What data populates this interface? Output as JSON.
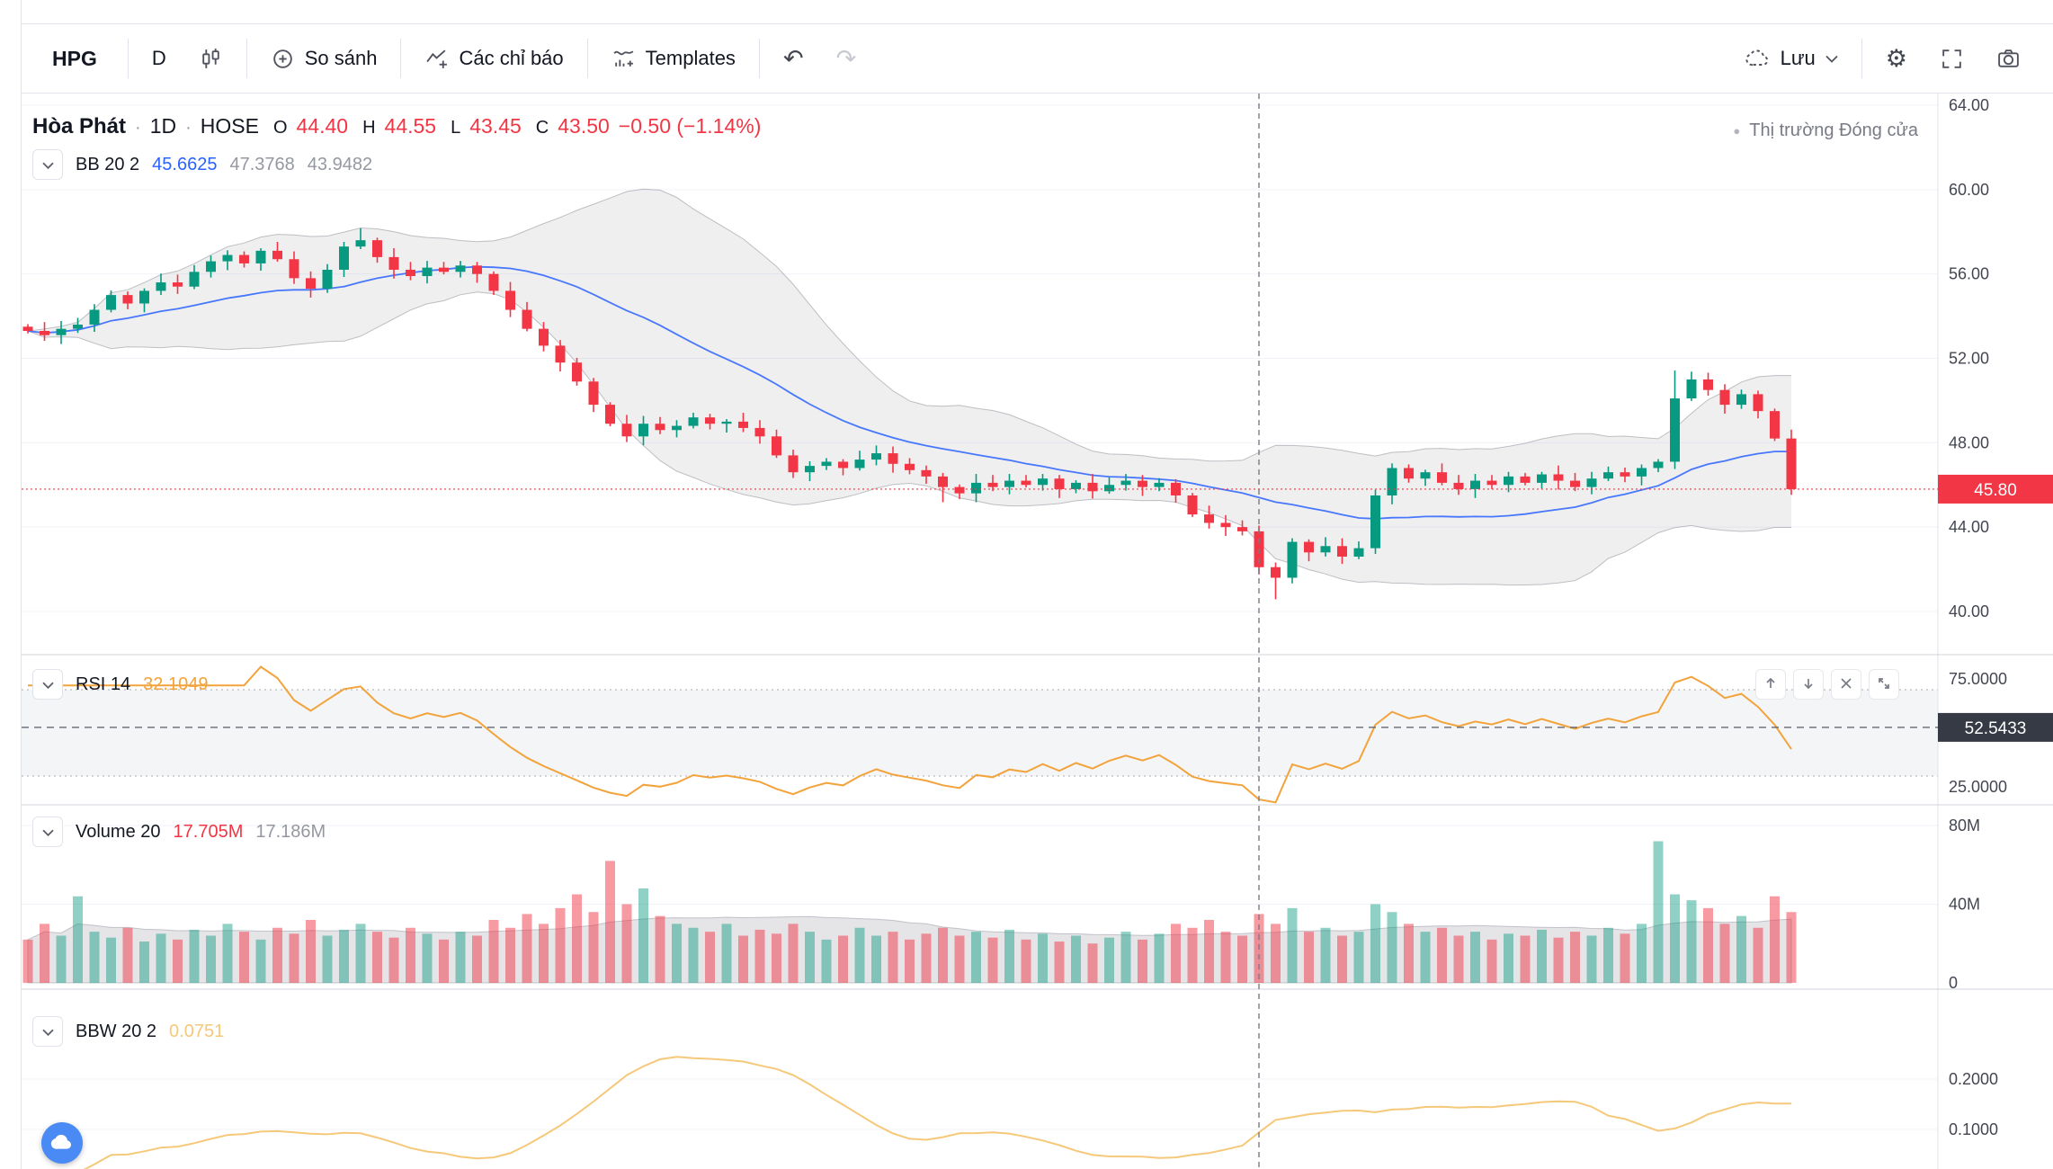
{
  "toolbar": {
    "symbol": "HPG",
    "interval": "D",
    "compare_label": "So sánh",
    "indicators_label": "Các chỉ báo",
    "templates_label": "Templates",
    "save_label": "Lưu"
  },
  "icons": {
    "undo": "↶",
    "redo": "↷",
    "gear": "⚙",
    "dot": "·",
    "bullet": "●"
  },
  "legend": {
    "title": "Hòa Phát",
    "interval": "1D",
    "exchange": "HOSE",
    "o_label": "O",
    "o": "44.40",
    "h_label": "H",
    "h": "44.55",
    "l_label": "L",
    "l": "43.45",
    "c_label": "C",
    "c": "43.50",
    "change": "−0.50 (−1.14%)",
    "market_status": "Thị trường Đóng cửa"
  },
  "indicators": {
    "bb": {
      "name": "BB 20 2",
      "v1": "45.6625",
      "v2": "47.3768",
      "v3": "43.9482"
    },
    "rsi": {
      "name": "RSI 14",
      "value": "32.1049"
    },
    "vol": {
      "name": "Volume 20",
      "v1": "17.705M",
      "v2": "17.186M"
    },
    "bbw": {
      "name": "BBW 20 2",
      "value": "0.0751"
    }
  },
  "colors": {
    "up": "#089981",
    "down": "#F23645",
    "bb_line": "#2962FF",
    "bb_fill": "rgba(120,123,134,0.12)",
    "bb_edge": "rgba(120,123,134,0.45)",
    "rsi": "#F2A33C",
    "bbw": "#F5C87A",
    "badge_dark": "#363A45",
    "grid": "#F0F3FA",
    "separator": "#E0E3EB",
    "pane_separator": "#D1D4DC",
    "crosshair": "#787B86"
  },
  "chart_data": {
    "type": "candlestick",
    "first_open": 53.5,
    "closes": [
      53.3,
      53.1,
      53.4,
      53.6,
      54.3,
      55.0,
      54.6,
      55.2,
      55.6,
      55.4,
      56.1,
      56.6,
      56.9,
      56.5,
      57.1,
      56.7,
      55.8,
      55.3,
      56.2,
      57.3,
      57.6,
      56.8,
      56.2,
      55.9,
      56.3,
      56.1,
      56.4,
      56.0,
      55.2,
      54.3,
      53.4,
      52.6,
      51.8,
      50.9,
      49.8,
      48.9,
      48.3,
      48.9,
      48.6,
      48.8,
      49.2,
      48.9,
      49.0,
      48.7,
      48.3,
      47.4,
      46.6,
      46.9,
      47.1,
      46.8,
      47.2,
      47.5,
      47.0,
      46.7,
      46.4,
      45.9,
      45.6,
      46.1,
      45.9,
      46.2,
      46.0,
      46.3,
      45.8,
      46.1,
      45.7,
      46.0,
      46.2,
      45.9,
      46.1,
      45.5,
      44.6,
      44.2,
      44.0,
      43.8,
      42.1,
      41.6,
      43.3,
      42.8,
      43.1,
      42.6,
      43.0,
      45.5,
      46.8,
      46.3,
      46.6,
      46.1,
      45.8,
      46.2,
      46.0,
      46.4,
      46.1,
      46.5,
      46.2,
      45.9,
      46.3,
      46.6,
      46.4,
      46.8,
      47.1,
      50.1,
      51.0,
      50.5,
      49.8,
      50.3,
      49.5,
      48.2,
      45.8
    ],
    "volumes": [
      22,
      30,
      24,
      44,
      26,
      23,
      28,
      21,
      25,
      22,
      27,
      24,
      30,
      26,
      22,
      28,
      25,
      32,
      24,
      27,
      30,
      26,
      23,
      28,
      25,
      22,
      26,
      24,
      32,
      28,
      35,
      30,
      38,
      45,
      36,
      62,
      40,
      48,
      34,
      30,
      28,
      26,
      30,
      24,
      27,
      25,
      30,
      26,
      22,
      24,
      28,
      24,
      26,
      22,
      25,
      28,
      24,
      26,
      23,
      27,
      22,
      25,
      21,
      24,
      20,
      23,
      26,
      22,
      25,
      30,
      28,
      32,
      26,
      24,
      35,
      30,
      38,
      26,
      28,
      24,
      26,
      40,
      36,
      30,
      26,
      28,
      24,
      26,
      22,
      25,
      24,
      27,
      23,
      26,
      24,
      28,
      25,
      30,
      72,
      45,
      42,
      38,
      30,
      34,
      28,
      44,
      36
    ],
    "low_extra": {
      "55": 0.6,
      "75": 0.9
    },
    "high_extra": {
      "20": 0.4,
      "99": 0.9
    },
    "price_ticks": [
      64,
      60,
      56,
      52,
      48,
      44,
      40
    ],
    "last_price": {
      "v": 45.8,
      "label": "45.80"
    },
    "rsi_ticks": [
      {
        "v": 75,
        "label": "75.0000"
      },
      {
        "v": 25,
        "label": "25.0000"
      }
    ],
    "rsi_levels": [
      70,
      30
    ],
    "rsi_last": {
      "v": 52.5433,
      "label": "52.5433"
    },
    "volume_ticks": [
      {
        "v": 80,
        "label": "80M"
      },
      {
        "v": 40,
        "label": "40M"
      },
      {
        "v": 0,
        "label": "0"
      }
    ],
    "bbw_ticks": [
      {
        "v": 0.2,
        "label": "0.2000"
      },
      {
        "v": 0.1,
        "label": "0.1000"
      }
    ],
    "crosshair_index": 74,
    "indicator_settings": {
      "bb_period": 20,
      "bb_mult": 2,
      "rsi_period": 14,
      "vol_ma": 20
    }
  }
}
